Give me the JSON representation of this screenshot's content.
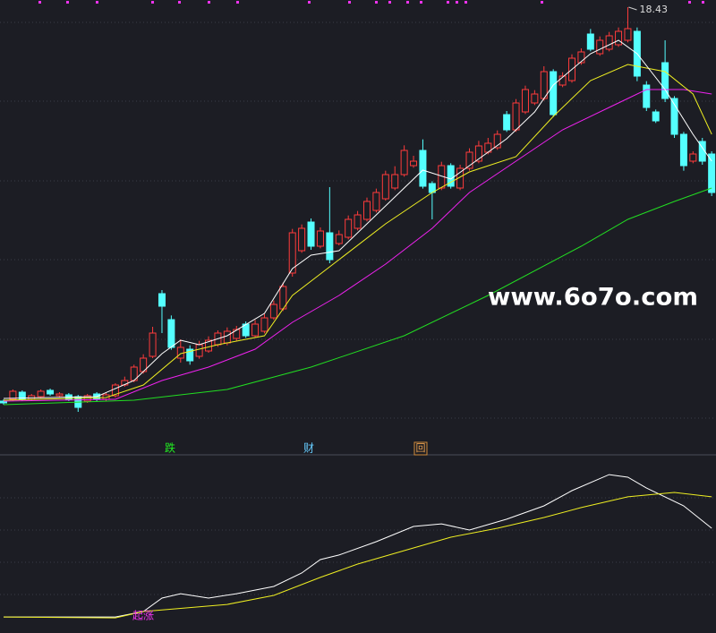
{
  "chart_data": [
    {
      "type": "candlestick",
      "ylim": [
        3.97,
        18.67
      ],
      "up_color": "#ff3b3b",
      "down_color": "#54ffff",
      "open": [
        5.23,
        5.29,
        5.53,
        5.29,
        5.38,
        5.59,
        5.41,
        5.44,
        5.38,
        5.23,
        5.47,
        5.29,
        5.41,
        5.77,
        5.92,
        6.22,
        6.73,
        8.83,
        7.96,
        6.67,
        6.97,
        6.73,
        6.91,
        7.12,
        7.18,
        7.33,
        7.81,
        7.42,
        7.57,
        8.02,
        8.32,
        9.52,
        10.27,
        11.23,
        10.42,
        10.87,
        10.51,
        10.72,
        11.02,
        11.32,
        11.62,
        12.01,
        12.37,
        12.82,
        13.12,
        13.63,
        12.52,
        12.37,
        13.12,
        12.37,
        13.03,
        13.27,
        13.57,
        13.72,
        14.83,
        14.32,
        14.92,
        15.22,
        15.37,
        16.27,
        15.82,
        15.97,
        16.57,
        17.53,
        16.87,
        17.02,
        17.17,
        17.32,
        17.62,
        15.82,
        14.92,
        16.57,
        15.37,
        14.17,
        13.27,
        13.93,
        13.51
      ],
      "high": [
        5.29,
        5.62,
        5.59,
        5.47,
        5.62,
        5.65,
        5.53,
        5.5,
        5.44,
        5.47,
        5.53,
        5.5,
        5.83,
        6.05,
        6.45,
        6.8,
        7.72,
        8.95,
        8.1,
        7.3,
        7.1,
        7.25,
        7.4,
        7.6,
        7.7,
        7.75,
        7.9,
        7.95,
        8.15,
        8.6,
        9.2,
        11.0,
        11.15,
        11.35,
        11.05,
        12.4,
        10.95,
        11.45,
        11.6,
        12.05,
        12.35,
        12.95,
        13.1,
        13.8,
        13.45,
        14.0,
        12.6,
        13.25,
        13.2,
        13.15,
        13.7,
        13.95,
        14.05,
        14.3,
        14.95,
        15.35,
        15.8,
        15.65,
        16.45,
        16.35,
        16.25,
        16.85,
        17.05,
        17.7,
        17.45,
        17.6,
        17.75,
        18.43,
        17.75,
        15.95,
        15.0,
        17.32,
        15.45,
        14.25,
        13.6,
        14.05,
        13.6
      ],
      "low": [
        5.11,
        5.23,
        5.23,
        5.23,
        5.32,
        5.41,
        5.35,
        5.23,
        4.87,
        5.17,
        5.23,
        5.23,
        5.35,
        5.71,
        5.86,
        6.15,
        6.67,
        7.51,
        6.95,
        6.52,
        6.45,
        6.65,
        6.85,
        7.05,
        7.1,
        7.25,
        7.35,
        7.35,
        7.5,
        7.95,
        8.25,
        9.4,
        10.2,
        10.3,
        10.35,
        9.85,
        10.45,
        10.65,
        10.95,
        11.25,
        11.55,
        11.95,
        12.3,
        12.75,
        13.05,
        12.35,
        11.32,
        12.3,
        12.35,
        12.3,
        12.95,
        13.2,
        13.5,
        13.65,
        14.25,
        14.25,
        14.85,
        15.15,
        15.3,
        14.75,
        15.75,
        15.9,
        16.5,
        16.95,
        16.8,
        16.95,
        17.1,
        17.25,
        15.95,
        14.95,
        14.55,
        15.25,
        14.05,
        12.95,
        13.2,
        13.15,
        12.1
      ],
      "close": [
        5.17,
        5.56,
        5.29,
        5.41,
        5.56,
        5.47,
        5.47,
        5.29,
        5.02,
        5.41,
        5.29,
        5.44,
        5.77,
        5.92,
        6.37,
        6.67,
        7.51,
        8.41,
        7.03,
        7.03,
        6.58,
        7.12,
        7.27,
        7.51,
        7.57,
        7.63,
        7.42,
        7.81,
        8.02,
        8.47,
        9.07,
        10.87,
        11.02,
        10.42,
        10.93,
        9.97,
        10.81,
        11.32,
        11.47,
        11.92,
        12.22,
        12.82,
        12.82,
        13.63,
        13.27,
        12.43,
        12.22,
        13.12,
        12.43,
        13.03,
        13.57,
        13.78,
        13.87,
        14.17,
        14.32,
        15.22,
        15.67,
        15.52,
        16.27,
        14.83,
        16.12,
        16.72,
        16.93,
        17.02,
        17.32,
        17.47,
        17.62,
        17.71,
        16.12,
        15.07,
        14.62,
        15.37,
        14.17,
        13.12,
        13.51,
        13.27,
        12.22
      ],
      "series": [
        {
          "color": "#22dd22",
          "x": [
            0,
            14,
            24,
            33,
            43,
            52,
            62,
            67,
            72,
            76
          ],
          "values": [
            5.11,
            5.26,
            5.62,
            6.37,
            7.42,
            8.77,
            10.42,
            11.32,
            11.92,
            12.37
          ]
        },
        {
          "color": "#ee22ee",
          "x": [
            0,
            12,
            17,
            22,
            27,
            31,
            36,
            41,
            46,
            50,
            55,
            60,
            65,
            69,
            73,
            76
          ],
          "values": [
            5.23,
            5.29,
            5.92,
            6.37,
            6.97,
            7.87,
            8.77,
            9.82,
            11.02,
            12.22,
            13.27,
            14.32,
            15.07,
            15.67,
            15.67,
            15.52
          ]
        },
        {
          "color": "#eeee22",
          "x": [
            0,
            11,
            15,
            19,
            23,
            28,
            31,
            36,
            41,
            46,
            50,
            55,
            59,
            63,
            67,
            71,
            74,
            76
          ],
          "values": [
            5.26,
            5.35,
            5.77,
            6.82,
            7.12,
            7.42,
            8.77,
            9.97,
            11.17,
            12.22,
            12.91,
            13.42,
            14.77,
            15.97,
            16.51,
            16.27,
            15.52,
            14.17
          ]
        },
        {
          "color": "#ffffff",
          "x": [
            0,
            10,
            14,
            17,
            19,
            21,
            24,
            28,
            31,
            33,
            36,
            39,
            42,
            45,
            48,
            50,
            54,
            57,
            59,
            63,
            66,
            68,
            71,
            74,
            76
          ],
          "values": [
            5.32,
            5.38,
            5.92,
            6.82,
            7.27,
            7.12,
            7.42,
            8.17,
            9.67,
            10.12,
            10.27,
            11.17,
            12.07,
            12.97,
            12.67,
            13.12,
            14.02,
            14.92,
            15.82,
            16.87,
            17.32,
            16.87,
            15.67,
            14.17,
            13.27
          ]
        }
      ],
      "signals": [
        "跌",
        "财",
        "回"
      ]
    },
    {
      "type": "line",
      "ylim": [
        0,
        100
      ],
      "annotation": "起涨",
      "series": [
        {
          "color": "#ffffff",
          "x": [
            0,
            12,
            15,
            17,
            19,
            22,
            25,
            29,
            32,
            34,
            36,
            40,
            44,
            47,
            50,
            54,
            58,
            61,
            65,
            67,
            69,
            73,
            76
          ],
          "values": [
            9.1,
            9.1,
            12.2,
            19.8,
            22.3,
            19.8,
            22.3,
            26.4,
            34.0,
            41.6,
            44.2,
            51.8,
            60.4,
            61.9,
            58.4,
            64.5,
            72.1,
            80.7,
            89.8,
            88.3,
            82.2,
            72.1,
            59.4
          ]
        },
        {
          "color": "#eeee22",
          "x": [
            0,
            12,
            15,
            24,
            29,
            34,
            38,
            43,
            48,
            53,
            58,
            62,
            67,
            72,
            76
          ],
          "values": [
            9.1,
            8.6,
            12.2,
            16.2,
            21.3,
            31.5,
            39.1,
            46.7,
            54.3,
            59.4,
            65.5,
            71.1,
            77.2,
            79.7,
            77.2
          ]
        }
      ]
    }
  ],
  "watermark": "www.6o7o.com"
}
